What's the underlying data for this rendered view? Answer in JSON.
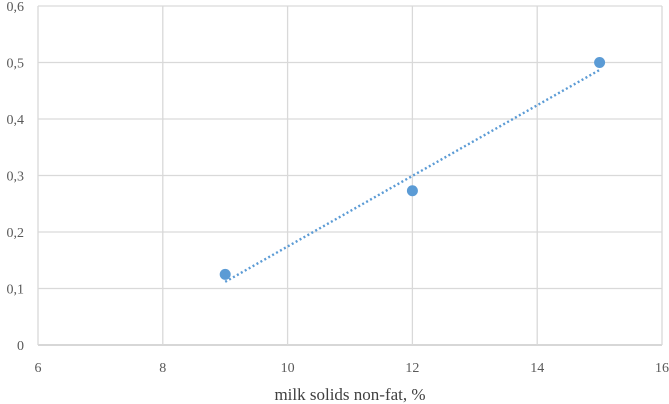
{
  "chart_data": {
    "type": "scatter",
    "title": "",
    "xlabel": "milk solids non-fat, %",
    "ylabel": "",
    "xlim": [
      6,
      16
    ],
    "ylim": [
      0,
      0.6
    ],
    "x_ticks": [
      6,
      8,
      10,
      12,
      14,
      16
    ],
    "y_ticks": [
      0,
      0.1,
      0.2,
      0.3,
      0.4,
      0.5,
      0.6
    ],
    "x_tick_labels": [
      "6",
      "8",
      "10",
      "12",
      "14",
      "16"
    ],
    "y_tick_labels": [
      "0",
      "0,1",
      "0,2",
      "0,3",
      "0,4",
      "0,5",
      "0,6"
    ],
    "grid": true,
    "legend": "none",
    "series": [
      {
        "x": [
          9,
          12,
          15
        ],
        "y": [
          0.125,
          0.273,
          0.5
        ],
        "color": "#5b9bd5",
        "marker": "circle"
      }
    ],
    "trendline": {
      "type": "linear",
      "style": "dotted",
      "color": "#5b9bd5",
      "x": [
        9,
        15
      ]
    }
  }
}
